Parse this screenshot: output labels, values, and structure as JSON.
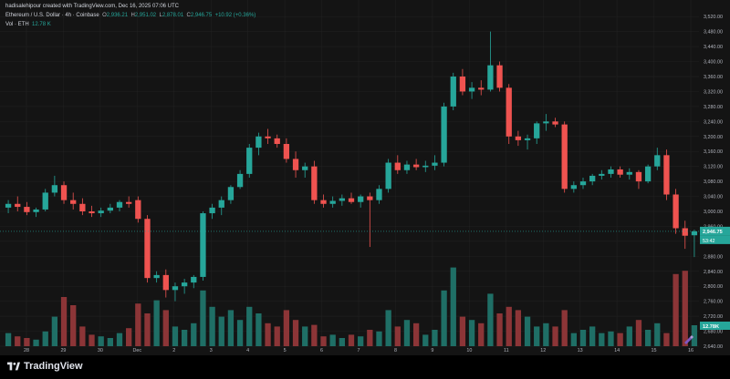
{
  "header": {
    "credit": "hadisalehipour created with TradingView.com, Dec 16, 2025 07:06 UTC",
    "symbol": "Ethereum / U.S. Dollar · 4h · Coinbase",
    "o_label": "O",
    "o_value": "2,936.21",
    "h_label": "H",
    "h_value": "2,951.02",
    "l_label": "L",
    "l_value": "2,878.01",
    "c_label": "C",
    "c_value": "2,946.75",
    "change": "+10.92 (+0.36%)",
    "vol_label": "Vol · ETH",
    "vol_value": "12.78 K"
  },
  "price_axis": {
    "ticks": [
      "3,520.00",
      "3,480.00",
      "3,440.00",
      "3,400.00",
      "3,360.00",
      "3,320.00",
      "3,280.00",
      "3,240.00",
      "3,200.00",
      "3,160.00",
      "3,120.00",
      "3,080.00",
      "3,040.00",
      "3,000.00",
      "2,960.00",
      "2,920.00",
      "2,880.00",
      "2,840.00",
      "2,800.00",
      "2,760.00",
      "2,720.00",
      "2,680.00",
      "2,640.00"
    ],
    "last_price": "2,946.75",
    "countdown": "53:42",
    "volume_badge": "12.78K"
  },
  "time_axis": {
    "ticks": [
      "28",
      "29",
      "30",
      "Dec",
      "2",
      "3",
      "4",
      "5",
      "6",
      "7",
      "8",
      "9",
      "10",
      "11",
      "12",
      "13",
      "14",
      "15",
      "16"
    ]
  },
  "colors": {
    "up": "#26a69a",
    "down": "#ef5350",
    "background": "#141414",
    "grid": "#232323"
  },
  "branding": {
    "logo_text": "TradingView"
  },
  "chart_data": {
    "type": "candlestick",
    "timeframe": "4h",
    "y_range": [
      2640,
      3540
    ],
    "candles": [
      {
        "o": 3010,
        "h": 3030,
        "l": 2995,
        "c": 3020
      },
      {
        "o": 3020,
        "h": 3040,
        "l": 3000,
        "c": 3012
      },
      {
        "o": 3012,
        "h": 3025,
        "l": 2990,
        "c": 2998
      },
      {
        "o": 2998,
        "h": 3010,
        "l": 2985,
        "c": 3005
      },
      {
        "o": 3005,
        "h": 3060,
        "l": 3000,
        "c": 3050
      },
      {
        "o": 3050,
        "h": 3095,
        "l": 3040,
        "c": 3070
      },
      {
        "o": 3070,
        "h": 3080,
        "l": 3020,
        "c": 3030
      },
      {
        "o": 3030,
        "h": 3050,
        "l": 3005,
        "c": 3020
      },
      {
        "o": 3020,
        "h": 3035,
        "l": 2990,
        "c": 3000
      },
      {
        "o": 3000,
        "h": 3015,
        "l": 2985,
        "c": 2995
      },
      {
        "o": 2995,
        "h": 3010,
        "l": 2985,
        "c": 3002
      },
      {
        "o": 3002,
        "h": 3020,
        "l": 2995,
        "c": 3010
      },
      {
        "o": 3010,
        "h": 3030,
        "l": 3000,
        "c": 3025
      },
      {
        "o": 3025,
        "h": 3040,
        "l": 3010,
        "c": 3020
      },
      {
        "o": 3030,
        "h": 3040,
        "l": 2970,
        "c": 2980
      },
      {
        "o": 2980,
        "h": 2990,
        "l": 2810,
        "c": 2822
      },
      {
        "o": 2822,
        "h": 2840,
        "l": 2810,
        "c": 2830
      },
      {
        "o": 2830,
        "h": 2845,
        "l": 2770,
        "c": 2790
      },
      {
        "o": 2790,
        "h": 2810,
        "l": 2760,
        "c": 2800
      },
      {
        "o": 2800,
        "h": 2820,
        "l": 2780,
        "c": 2810
      },
      {
        "o": 2810,
        "h": 2830,
        "l": 2795,
        "c": 2825
      },
      {
        "o": 2825,
        "h": 3000,
        "l": 2815,
        "c": 2995
      },
      {
        "o": 2995,
        "h": 3020,
        "l": 2980,
        "c": 3010
      },
      {
        "o": 3010,
        "h": 3040,
        "l": 2990,
        "c": 3030
      },
      {
        "o": 3030,
        "h": 3070,
        "l": 3020,
        "c": 3065
      },
      {
        "o": 3065,
        "h": 3110,
        "l": 3060,
        "c": 3100
      },
      {
        "o": 3100,
        "h": 3180,
        "l": 3090,
        "c": 3170
      },
      {
        "o": 3170,
        "h": 3210,
        "l": 3150,
        "c": 3200
      },
      {
        "o": 3200,
        "h": 3220,
        "l": 3180,
        "c": 3195
      },
      {
        "o": 3195,
        "h": 3205,
        "l": 3170,
        "c": 3180
      },
      {
        "o": 3180,
        "h": 3195,
        "l": 3130,
        "c": 3140
      },
      {
        "o": 3140,
        "h": 3160,
        "l": 3090,
        "c": 3110
      },
      {
        "o": 3110,
        "h": 3130,
        "l": 3090,
        "c": 3120
      },
      {
        "o": 3120,
        "h": 3135,
        "l": 3020,
        "c": 3030
      },
      {
        "o": 3030,
        "h": 3045,
        "l": 3010,
        "c": 3020
      },
      {
        "o": 3020,
        "h": 3040,
        "l": 3010,
        "c": 3028
      },
      {
        "o": 3028,
        "h": 3045,
        "l": 3015,
        "c": 3035
      },
      {
        "o": 3035,
        "h": 3050,
        "l": 3020,
        "c": 3025
      },
      {
        "o": 3025,
        "h": 3045,
        "l": 3010,
        "c": 3040
      },
      {
        "o": 3040,
        "h": 3050,
        "l": 2905,
        "c": 3030
      },
      {
        "o": 3030,
        "h": 3070,
        "l": 3020,
        "c": 3060
      },
      {
        "o": 3060,
        "h": 3140,
        "l": 3050,
        "c": 3130
      },
      {
        "o": 3130,
        "h": 3150,
        "l": 3100,
        "c": 3110
      },
      {
        "o": 3110,
        "h": 3135,
        "l": 3100,
        "c": 3125
      },
      {
        "o": 3125,
        "h": 3140,
        "l": 3110,
        "c": 3118
      },
      {
        "o": 3118,
        "h": 3135,
        "l": 3105,
        "c": 3122
      },
      {
        "o": 3122,
        "h": 3150,
        "l": 3110,
        "c": 3130
      },
      {
        "o": 3130,
        "h": 3290,
        "l": 3120,
        "c": 3280
      },
      {
        "o": 3280,
        "h": 3370,
        "l": 3270,
        "c": 3360
      },
      {
        "o": 3360,
        "h": 3380,
        "l": 3310,
        "c": 3320
      },
      {
        "o": 3320,
        "h": 3345,
        "l": 3300,
        "c": 3330
      },
      {
        "o": 3330,
        "h": 3350,
        "l": 3310,
        "c": 3325
      },
      {
        "o": 3325,
        "h": 3480,
        "l": 3320,
        "c": 3390
      },
      {
        "o": 3390,
        "h": 3400,
        "l": 3320,
        "c": 3330
      },
      {
        "o": 3330,
        "h": 3340,
        "l": 3180,
        "c": 3200
      },
      {
        "o": 3200,
        "h": 3215,
        "l": 3175,
        "c": 3190
      },
      {
        "o": 3190,
        "h": 3205,
        "l": 3165,
        "c": 3195
      },
      {
        "o": 3195,
        "h": 3240,
        "l": 3180,
        "c": 3235
      },
      {
        "o": 3235,
        "h": 3260,
        "l": 3215,
        "c": 3240
      },
      {
        "o": 3240,
        "h": 3250,
        "l": 3225,
        "c": 3232
      },
      {
        "o": 3232,
        "h": 3240,
        "l": 3050,
        "c": 3060
      },
      {
        "o": 3060,
        "h": 3080,
        "l": 3050,
        "c": 3070
      },
      {
        "o": 3070,
        "h": 3090,
        "l": 3060,
        "c": 3080
      },
      {
        "o": 3080,
        "h": 3100,
        "l": 3070,
        "c": 3095
      },
      {
        "o": 3095,
        "h": 3110,
        "l": 3085,
        "c": 3100
      },
      {
        "o": 3100,
        "h": 3120,
        "l": 3090,
        "c": 3112
      },
      {
        "o": 3112,
        "h": 3120,
        "l": 3090,
        "c": 3098
      },
      {
        "o": 3098,
        "h": 3115,
        "l": 3085,
        "c": 3105
      },
      {
        "o": 3105,
        "h": 3110,
        "l": 3060,
        "c": 3080
      },
      {
        "o": 3080,
        "h": 3125,
        "l": 3075,
        "c": 3120
      },
      {
        "o": 3120,
        "h": 3170,
        "l": 3110,
        "c": 3150
      },
      {
        "o": 3150,
        "h": 3165,
        "l": 3030,
        "c": 3045
      },
      {
        "o": 3045,
        "h": 3060,
        "l": 2940,
        "c": 2955
      },
      {
        "o": 2955,
        "h": 2975,
        "l": 2900,
        "c": 2935
      },
      {
        "o": 2936.21,
        "h": 2951.02,
        "l": 2878.01,
        "c": 2946.75
      }
    ],
    "volumes_k": [
      8,
      6,
      5,
      4,
      9,
      18,
      30,
      25,
      12,
      7,
      6,
      5,
      8,
      11,
      26,
      20,
      28,
      22,
      12,
      10,
      14,
      34,
      24,
      18,
      22,
      16,
      24,
      20,
      14,
      12,
      22,
      16,
      12,
      13,
      6,
      7,
      5,
      7,
      6,
      10,
      9,
      22,
      12,
      16,
      14,
      7,
      10,
      34,
      48,
      18,
      16,
      14,
      32,
      20,
      24,
      22,
      18,
      12,
      14,
      12,
      22,
      8,
      10,
      12,
      8,
      9,
      8,
      12,
      16,
      10,
      14,
      8,
      44,
      46,
      12.78
    ]
  }
}
